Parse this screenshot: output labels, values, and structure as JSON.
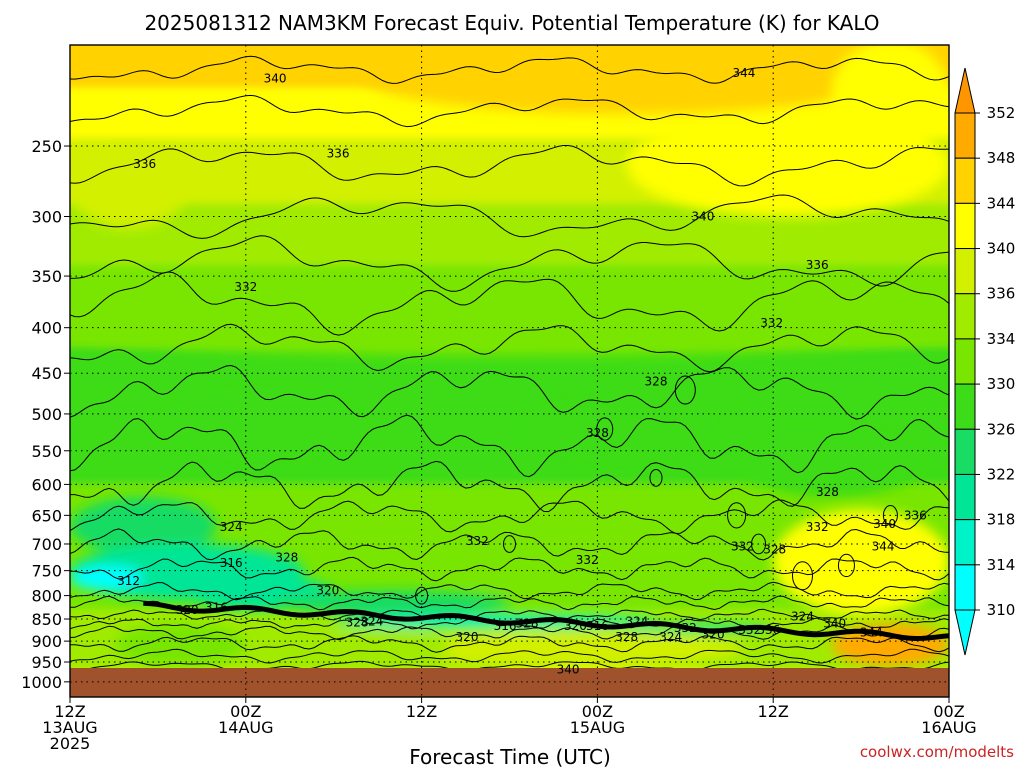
{
  "chart_data": {
    "type": "heatmap",
    "title": "2025081312 NAM3KM Forecast Equiv. Potential Temperature (K) for KALO",
    "xlabel": "Forecast Time (UTC)",
    "ylabel": "",
    "y_scale": "log",
    "y_inverted": true,
    "ylim": [
      1000,
      200
    ],
    "y_ticks": [
      250,
      300,
      350,
      400,
      450,
      500,
      550,
      600,
      650,
      700,
      750,
      800,
      850,
      900,
      950,
      1000
    ],
    "x_range_hours": [
      0,
      60
    ],
    "x_ticks": [
      {
        "hour": 0,
        "lines": [
          "12Z",
          "13AUG",
          "2025"
        ]
      },
      {
        "hour": 12,
        "lines": [
          "00Z",
          "14AUG"
        ]
      },
      {
        "hour": 24,
        "lines": [
          "12Z"
        ]
      },
      {
        "hour": 36,
        "lines": [
          "00Z",
          "15AUG"
        ]
      },
      {
        "hour": 48,
        "lines": [
          "12Z"
        ]
      },
      {
        "hour": 60,
        "lines": [
          "00Z",
          "16AUG"
        ]
      }
    ],
    "grid": true,
    "units": "K",
    "colorbar": {
      "levels": [
        310,
        314,
        318,
        322,
        326,
        330,
        334,
        336,
        340,
        344,
        348,
        352
      ],
      "colors": [
        "#00ffff",
        "#00f2c8",
        "#00e696",
        "#19dc64",
        "#3cdc19",
        "#78e600",
        "#a0eb00",
        "#d2f000",
        "#ffff00",
        "#ffd200",
        "#ffaa00",
        "#ff9600"
      ],
      "extend": "both",
      "position": "right"
    },
    "contour_labels": [
      {
        "hour": 14.0,
        "p": 210,
        "value": 340
      },
      {
        "hour": 46.0,
        "p": 207,
        "value": 344
      },
      {
        "hour": 5.1,
        "p": 262,
        "value": 336
      },
      {
        "hour": 18.3,
        "p": 255,
        "value": 336
      },
      {
        "hour": 43.2,
        "p": 300,
        "value": 340
      },
      {
        "hour": 51.0,
        "p": 340,
        "value": 336
      },
      {
        "hour": 12.0,
        "p": 360,
        "value": 332
      },
      {
        "hour": 47.9,
        "p": 395,
        "value": 332
      },
      {
        "hour": 40.0,
        "p": 460,
        "value": 328
      },
      {
        "hour": 36.0,
        "p": 525,
        "value": 328
      },
      {
        "hour": 51.7,
        "p": 612,
        "value": 328
      },
      {
        "hour": 11.0,
        "p": 670,
        "value": 324
      },
      {
        "hour": 27.8,
        "p": 695,
        "value": 332
      },
      {
        "hour": 45.9,
        "p": 705,
        "value": 332
      },
      {
        "hour": 51.0,
        "p": 670,
        "value": 332
      },
      {
        "hour": 55.6,
        "p": 665,
        "value": 340
      },
      {
        "hour": 57.7,
        "p": 650,
        "value": 336
      },
      {
        "hour": 55.5,
        "p": 705,
        "value": 344
      },
      {
        "hour": 11.0,
        "p": 735,
        "value": 316
      },
      {
        "hour": 14.8,
        "p": 725,
        "value": 328
      },
      {
        "hour": 35.3,
        "p": 730,
        "value": 332
      },
      {
        "hour": 48.1,
        "p": 710,
        "value": 328
      },
      {
        "hour": 4.0,
        "p": 770,
        "value": 312
      },
      {
        "hour": 17.6,
        "p": 790,
        "value": 320
      },
      {
        "hour": 8.0,
        "p": 830,
        "value": 320
      },
      {
        "hour": 10.0,
        "p": 825,
        "value": 316
      },
      {
        "hour": 19.6,
        "p": 858,
        "value": 328
      },
      {
        "hour": 20.6,
        "p": 855,
        "value": 324
      },
      {
        "hour": 31.2,
        "p": 860,
        "value": 328
      },
      {
        "hour": 34.5,
        "p": 865,
        "value": 320
      },
      {
        "hour": 36.0,
        "p": 865,
        "value": 316
      },
      {
        "hour": 38.7,
        "p": 855,
        "value": 324
      },
      {
        "hour": 29.7,
        "p": 865,
        "value": 316
      },
      {
        "hour": 27.1,
        "p": 890,
        "value": 320
      },
      {
        "hour": 42.0,
        "p": 870,
        "value": 332
      },
      {
        "hour": 46.4,
        "p": 875,
        "value": 332
      },
      {
        "hour": 52.2,
        "p": 860,
        "value": 340
      },
      {
        "hour": 50.0,
        "p": 845,
        "value": 324
      },
      {
        "hour": 38.0,
        "p": 890,
        "value": 328
      },
      {
        "hour": 41.0,
        "p": 890,
        "value": 324
      },
      {
        "hour": 43.9,
        "p": 885,
        "value": 320
      },
      {
        "hour": 47.7,
        "p": 875,
        "value": 336
      },
      {
        "hour": 54.7,
        "p": 880,
        "value": 344
      },
      {
        "hour": 34.0,
        "p": 968,
        "value": 340
      }
    ]
  },
  "credit": "coolwx.com/modelts"
}
